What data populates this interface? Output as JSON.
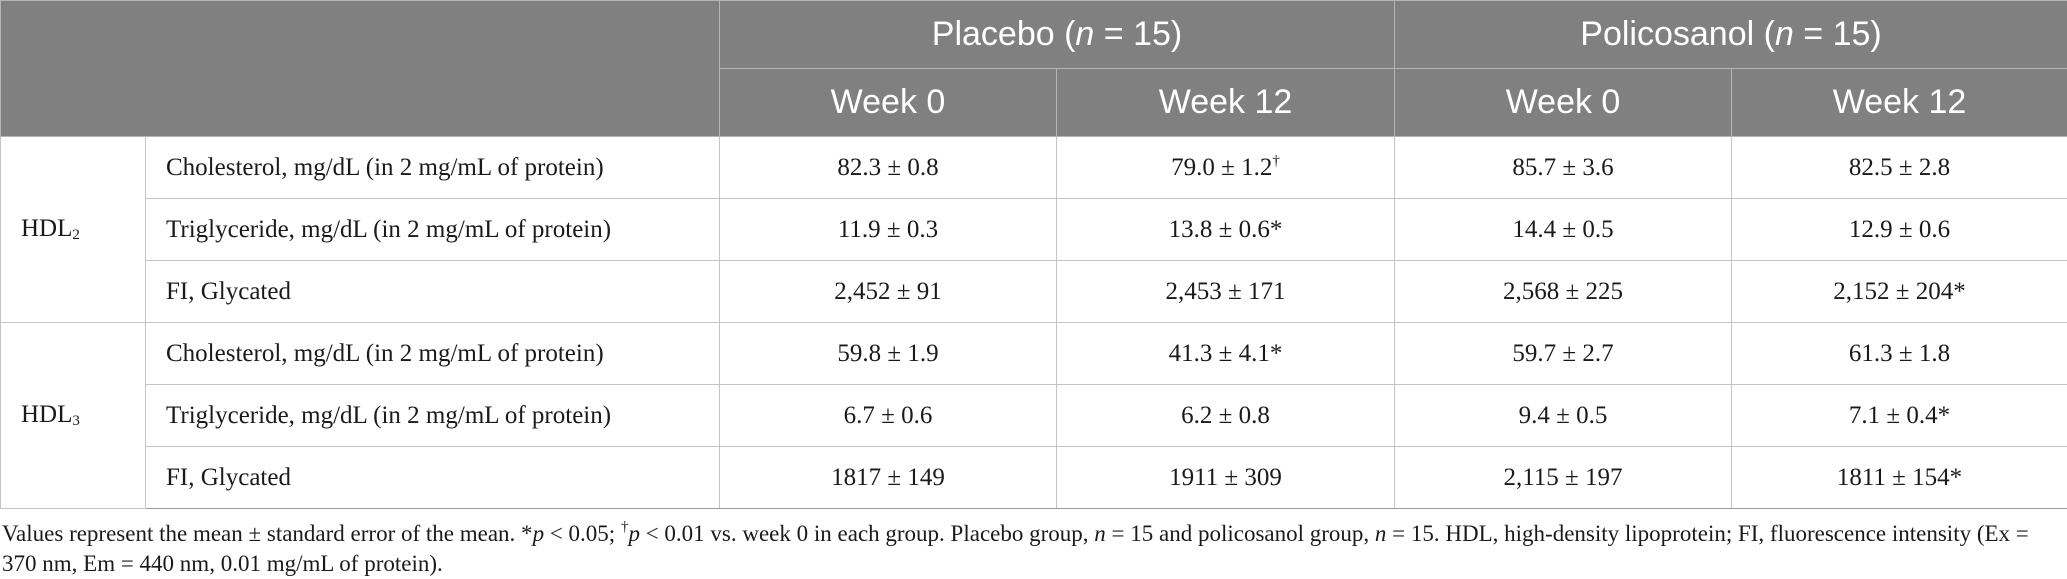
{
  "header": {
    "groups": [
      {
        "label_pre": "Placebo (",
        "label_n": "n",
        "label_post": " = 15)"
      },
      {
        "label_pre": "Policosanol (",
        "label_n": "n",
        "label_post": " = 15)"
      }
    ],
    "weeks": [
      "Week 0",
      "Week 12",
      "Week 0",
      "Week 12"
    ]
  },
  "sections": [
    {
      "group_base": "HDL",
      "group_sub": "2",
      "rows": [
        {
          "measure": "Cholesterol, mg/dL (in 2 mg/mL of protein)",
          "values": [
            {
              "text": "82.3 ± 0.8",
              "mark": ""
            },
            {
              "text": "79.0 ± 1.2",
              "mark": "†"
            },
            {
              "text": "85.7 ± 3.6",
              "mark": ""
            },
            {
              "text": "82.5 ± 2.8",
              "mark": ""
            }
          ]
        },
        {
          "measure": "Triglyceride, mg/dL (in 2 mg/mL of protein)",
          "values": [
            {
              "text": "11.9 ± 0.3",
              "mark": ""
            },
            {
              "text": "13.8 ± 0.6*",
              "mark": ""
            },
            {
              "text": "14.4 ± 0.5",
              "mark": ""
            },
            {
              "text": "12.9 ± 0.6",
              "mark": ""
            }
          ]
        },
        {
          "measure": "FI, Glycated",
          "values": [
            {
              "text": "2,452 ± 91",
              "mark": ""
            },
            {
              "text": "2,453 ± 171",
              "mark": ""
            },
            {
              "text": "2,568 ± 225",
              "mark": ""
            },
            {
              "text": "2,152 ± 204*",
              "mark": ""
            }
          ]
        }
      ]
    },
    {
      "group_base": "HDL",
      "group_sub": "3",
      "rows": [
        {
          "measure": "Cholesterol, mg/dL (in 2 mg/mL of protein)",
          "values": [
            {
              "text": "59.8 ± 1.9",
              "mark": ""
            },
            {
              "text": "41.3 ± 4.1*",
              "mark": ""
            },
            {
              "text": "59.7 ± 2.7",
              "mark": ""
            },
            {
              "text": "61.3 ± 1.8",
              "mark": ""
            }
          ]
        },
        {
          "measure": "Triglyceride, mg/dL (in 2 mg/mL of protein)",
          "values": [
            {
              "text": "6.7 ± 0.6",
              "mark": ""
            },
            {
              "text": "6.2 ± 0.8",
              "mark": ""
            },
            {
              "text": "9.4 ± 0.5",
              "mark": ""
            },
            {
              "text": "7.1 ± 0.4*",
              "mark": ""
            }
          ]
        },
        {
          "measure": "FI, Glycated",
          "values": [
            {
              "text": "1817 ± 149",
              "mark": ""
            },
            {
              "text": "1911 ± 309",
              "mark": ""
            },
            {
              "text": "2,115 ± 197",
              "mark": ""
            },
            {
              "text": "1811 ± 154*",
              "mark": ""
            }
          ]
        }
      ]
    }
  ],
  "footnote": {
    "s1": "Values represent the mean ± standard error of the mean. *",
    "p1": "p",
    "s2": " < 0.05; ",
    "dagger": "†",
    "p2": "p",
    "s3": " < 0.01 vs. week 0 in each group. Placebo group, ",
    "n1": "n",
    "s4": " = 15 and policosanol group, ",
    "n2": "n",
    "s5": " = 15. HDL, high-density lipoprotein; FI, fluorescence intensity (Ex = 370 nm, Em = 440 nm, 0.01 mg/mL of protein)."
  },
  "colors": {
    "header_bg": "#808080",
    "header_text": "#ffffff",
    "grid": "#c4c4c4"
  }
}
